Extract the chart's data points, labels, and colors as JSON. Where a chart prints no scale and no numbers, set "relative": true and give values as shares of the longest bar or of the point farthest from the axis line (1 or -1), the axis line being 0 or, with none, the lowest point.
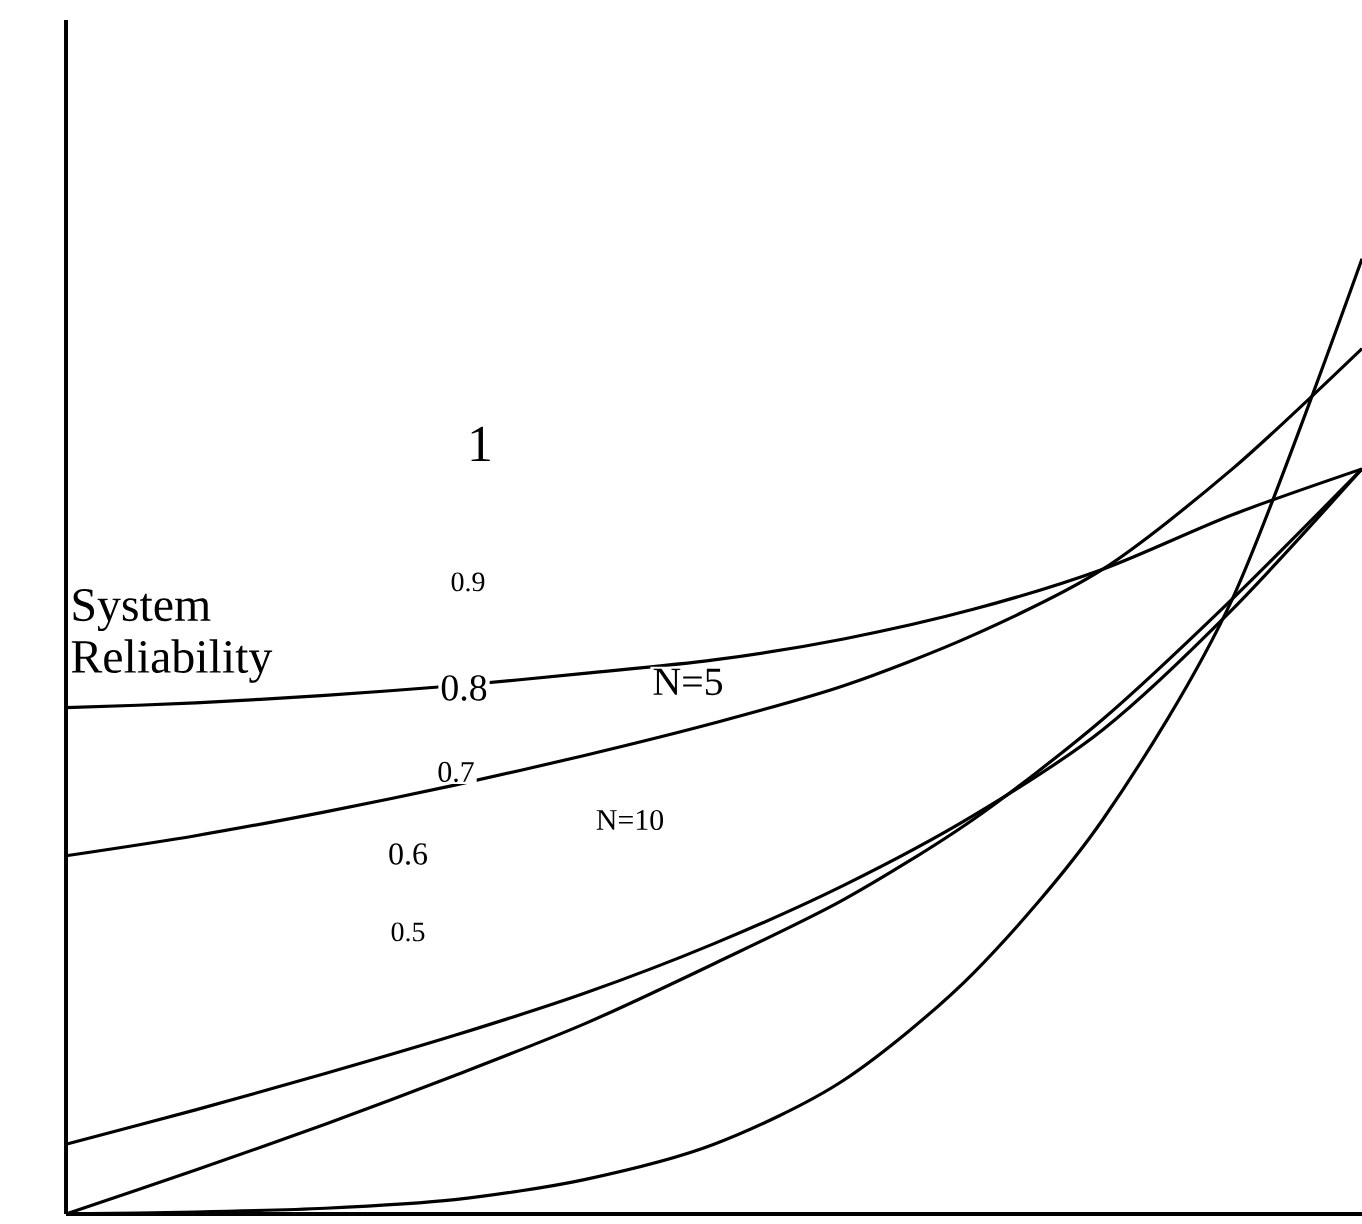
{
  "chart_data": {
    "type": "line",
    "relative": true,
    "categories": [
      null,
      null,
      null,
      null,
      null,
      null,
      null,
      null,
      null,
      null,
      null
    ],
    "series": [
      {
        "color": "#000000",
        "values": [
          0.53,
          0.535,
          0.543,
          0.553,
          0.566,
          0.58,
          0.602,
          0.633,
          0.675,
          0.732,
          0.78
        ]
      },
      {
        "color": "#000000",
        "values": [
          0.375,
          0.396,
          0.421,
          0.449,
          0.48,
          0.514,
          0.553,
          0.606,
          0.675,
          0.78,
          0.906
        ]
      },
      {
        "color": "#000000",
        "values": [
          0.073,
          0.109,
          0.147,
          0.187,
          0.231,
          0.283,
          0.344,
          0.417,
          0.507,
          0.633,
          0.78
        ]
      },
      {
        "color": "#000000",
        "values": [
          0,
          0.046,
          0.094,
          0.145,
          0.199,
          0.262,
          0.329,
          0.413,
          0.518,
          0.644,
          0.78
        ]
      },
      {
        "color": "#000000",
        "values": [
          0,
          0.002,
          0.006,
          0.015,
          0.036,
          0.073,
          0.14,
          0.252,
          0.413,
          0.644,
          1
        ]
      }
    ],
    "annotations": [
      "System Reliability",
      "1",
      "0.9",
      "0.8",
      "0.7",
      "0.6",
      "0.5",
      "N=5",
      "N=10"
    ],
    "marker": "none",
    "line_style": "solid"
  }
}
